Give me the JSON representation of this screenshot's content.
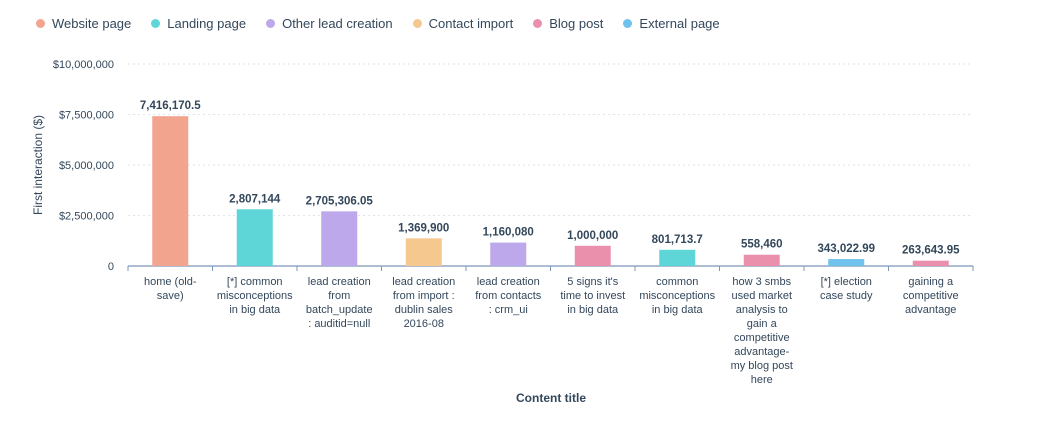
{
  "legend": [
    {
      "label": "Website page",
      "color": "#f2a48e"
    },
    {
      "label": "Landing page",
      "color": "#5ed6d8"
    },
    {
      "label": "Other lead creation",
      "color": "#bca8ea"
    },
    {
      "label": "Contact import",
      "color": "#f5c890"
    },
    {
      "label": "Blog post",
      "color": "#ea90ad"
    },
    {
      "label": "External page",
      "color": "#6ec2ec"
    }
  ],
  "chart_data": {
    "type": "bar",
    "xlabel": "Content title",
    "ylabel": "First interaction ($)",
    "ylim": [
      0,
      10000000
    ],
    "yticks": [
      {
        "value": 0,
        "label": "0"
      },
      {
        "value": 2500000,
        "label": "$2,500,000"
      },
      {
        "value": 5000000,
        "label": "$5,000,000"
      },
      {
        "value": 7500000,
        "label": "$7,500,000"
      },
      {
        "value": 10000000,
        "label": "$10,000,000"
      }
    ],
    "grid": true,
    "legend_position": "top-left",
    "bars": [
      {
        "category": [
          "home (old-",
          "save)"
        ],
        "value": 7416170.5,
        "label": "7,416,170.5",
        "type": "Website page"
      },
      {
        "category": [
          "[*] common",
          "misconceptions",
          "in big data"
        ],
        "value": 2807144,
        "label": "2,807,144",
        "type": "Landing page"
      },
      {
        "category": [
          "lead creation",
          "from",
          "batch_update",
          ": auditid=null"
        ],
        "value": 2705306.05,
        "label": "2,705,306.05",
        "type": "Other lead creation"
      },
      {
        "category": [
          "lead creation",
          "from import :",
          "dublin sales",
          "2016-08"
        ],
        "value": 1369900,
        "label": "1,369,900",
        "type": "Contact import"
      },
      {
        "category": [
          "lead creation",
          "from contacts",
          ": crm_ui"
        ],
        "value": 1160080,
        "label": "1,160,080",
        "type": "Other lead creation"
      },
      {
        "category": [
          "5 signs it's",
          "time to invest",
          "in big data"
        ],
        "value": 1000000,
        "label": "1,000,000",
        "type": "Blog post"
      },
      {
        "category": [
          "common",
          "misconceptions",
          "in big data"
        ],
        "value": 801713.7,
        "label": "801,713.7",
        "type": "Landing page"
      },
      {
        "category": [
          "how 3 smbs",
          "used market",
          "analysis to",
          "gain a",
          "competitive",
          "advantage-",
          "my blog post",
          "here"
        ],
        "value": 558460,
        "label": "558,460",
        "type": "Blog post"
      },
      {
        "category": [
          "[*] election",
          "case study"
        ],
        "value": 343022.99,
        "label": "343,022.99",
        "type": "External page"
      },
      {
        "category": [
          "gaining a",
          "competitive",
          "advantage"
        ],
        "value": 263643.95,
        "label": "263,643.95",
        "type": "Blog post"
      }
    ]
  }
}
